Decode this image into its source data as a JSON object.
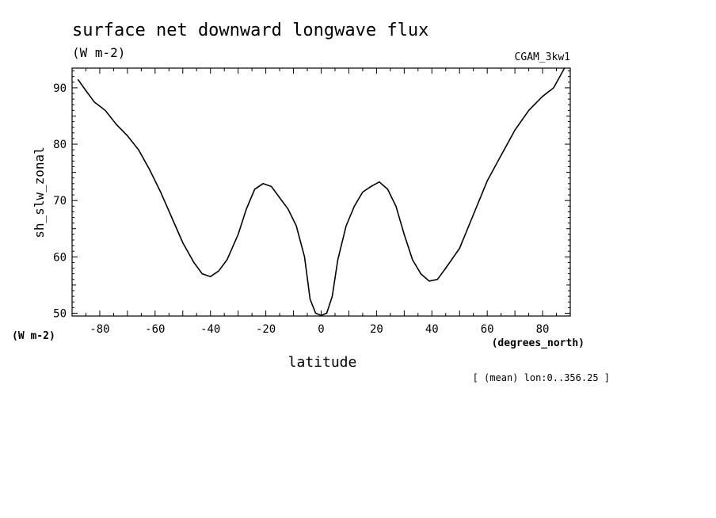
{
  "chart_data": {
    "type": "line",
    "title": "surface net downward longwave flux",
    "units": "(W m-2)",
    "dataset": "CGAM_3kw1",
    "ylabel": "sh_slw_zonal",
    "y_units_label": "(W m-2)",
    "xlabel": "latitude",
    "x_units_label": "(degrees_north)",
    "note": "[ (mean) lon:0..356.25 ]",
    "xlim": [
      -90,
      90
    ],
    "ylim": [
      49.5,
      93.5
    ],
    "x_ticks": [
      -80,
      -60,
      -40,
      -20,
      0,
      20,
      40,
      60,
      80
    ],
    "x_tick_labels": [
      "-80",
      "-60",
      "-40",
      "-20",
      "0",
      "20",
      "40",
      "60",
      "80"
    ],
    "y_ticks": [
      50,
      60,
      70,
      80,
      90
    ],
    "y_tick_labels": [
      "50",
      "60",
      "70",
      "80",
      "90"
    ],
    "grid": false,
    "series": [
      {
        "x": [
          -87.9,
          -85,
          -82,
          -78,
          -74,
          -70,
          -66,
          -62,
          -58,
          -54,
          -50,
          -46,
          -43,
          -40,
          -37,
          -34,
          -30,
          -27,
          -24,
          -21,
          -18,
          -15,
          -12,
          -9,
          -6,
          -4,
          -2,
          0,
          2,
          4,
          6,
          9,
          12,
          15,
          18,
          21,
          24,
          27,
          30,
          33,
          36,
          39,
          42,
          45,
          50,
          55,
          60,
          65,
          70,
          75,
          80,
          84,
          87.9
        ],
        "y": [
          91.5,
          89.5,
          87.5,
          86.0,
          83.5,
          81.5,
          79.0,
          75.5,
          71.5,
          67.0,
          62.5,
          59.0,
          57.0,
          56.5,
          57.5,
          59.5,
          64.0,
          68.5,
          72.0,
          73.0,
          72.5,
          70.5,
          68.5,
          65.5,
          60.0,
          52.5,
          50.0,
          49.6,
          50.0,
          53.0,
          59.5,
          65.5,
          69.0,
          71.5,
          72.5,
          73.3,
          72.0,
          69.0,
          64.0,
          59.5,
          57.0,
          55.7,
          56.0,
          58.0,
          61.5,
          67.5,
          73.5,
          78.0,
          82.5,
          86.0,
          88.5,
          90.0,
          93.5
        ]
      }
    ]
  }
}
